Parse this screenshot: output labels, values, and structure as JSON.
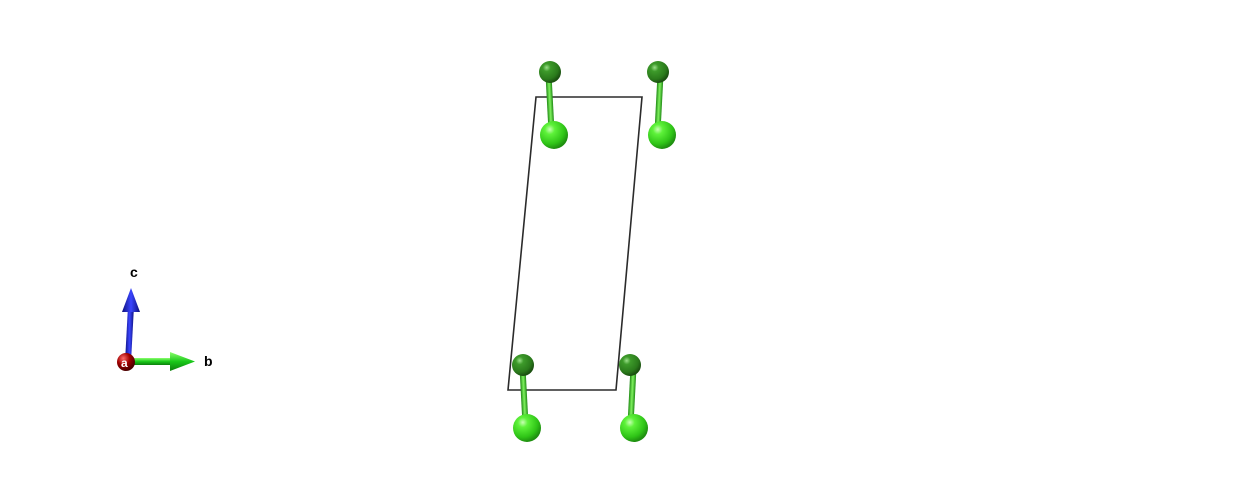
{
  "structure": {
    "cell_edge_color": "#2b2b2b",
    "atom_colors": {
      "dark": "#2f8a1f",
      "light": "#3fe11c",
      "bond": "#3ecf2a"
    },
    "molecule_count": 4
  },
  "axes": {
    "a_label": "a",
    "b_label": "b",
    "c_label": "c",
    "a_color": "#8b0000",
    "b_color": "#1fd11f",
    "c_color": "#0d16d8"
  }
}
